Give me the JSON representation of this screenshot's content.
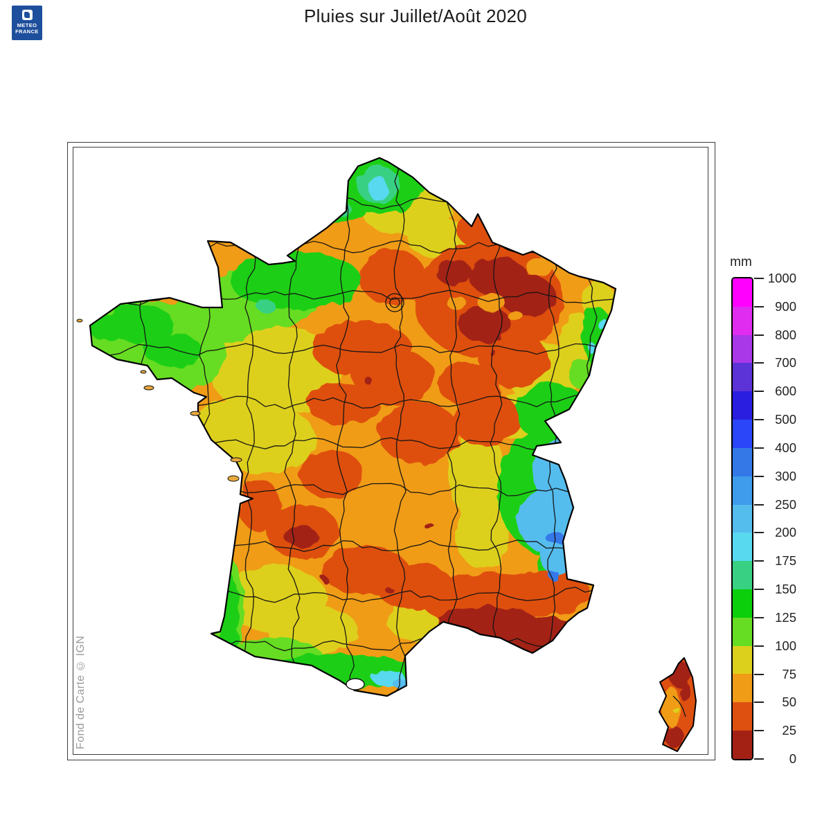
{
  "title": "Pluies sur Juillet/Août 2020",
  "logo": {
    "line1": "METEO",
    "line2": "FRANCE",
    "brand_color": "#1e4f9c"
  },
  "map": {
    "attribution": "Fond de Carte © IGN"
  },
  "legend": {
    "unit": "mm",
    "bands": [
      {
        "min": 900,
        "max": 1000,
        "color": "#FF00FF"
      },
      {
        "min": 800,
        "max": 900,
        "color": "#E02BF0"
      },
      {
        "min": 700,
        "max": 800,
        "color": "#A838E8"
      },
      {
        "min": 600,
        "max": 700,
        "color": "#5B33D6"
      },
      {
        "min": 500,
        "max": 600,
        "color": "#2A1EE0"
      },
      {
        "min": 400,
        "max": 500,
        "color": "#2B46F8"
      },
      {
        "min": 300,
        "max": 400,
        "color": "#3478E8"
      },
      {
        "min": 250,
        "max": 300,
        "color": "#3F9BEB"
      },
      {
        "min": 200,
        "max": 250,
        "color": "#55BCEE"
      },
      {
        "min": 175,
        "max": 200,
        "color": "#58D9F0"
      },
      {
        "min": 150,
        "max": 175,
        "color": "#38D183"
      },
      {
        "min": 125,
        "max": 150,
        "color": "#0ACF0A"
      },
      {
        "min": 100,
        "max": 125,
        "color": "#66DD22"
      },
      {
        "min": 75,
        "max": 100,
        "color": "#DDD01C"
      },
      {
        "min": 50,
        "max": 75,
        "color": "#F09C16"
      },
      {
        "min": 25,
        "max": 50,
        "color": "#DE5010"
      },
      {
        "min": 0,
        "max": 25,
        "color": "#A32015"
      }
    ]
  }
}
